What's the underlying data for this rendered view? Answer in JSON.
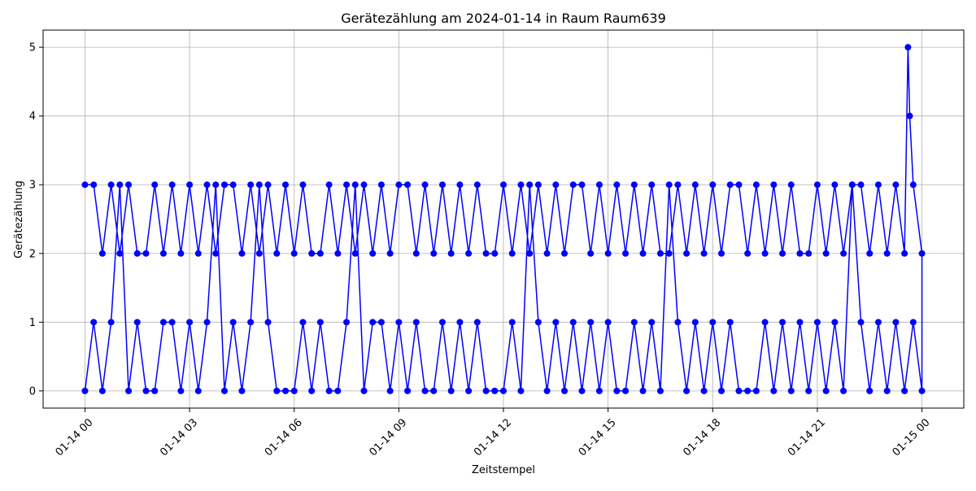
{
  "chart_data": {
    "type": "line",
    "title": "Gerätezählung am 2024-01-14 in Raum Raum639",
    "x_label": "Zeitstempel",
    "y_label": "Gerätezählung",
    "grid": true,
    "xlim": [
      -1.2,
      25.2
    ],
    "ylim": [
      -0.25,
      5.25
    ],
    "xticks": [
      {
        "value": 0,
        "label": "01-14 00"
      },
      {
        "value": 3,
        "label": "01-14 03"
      },
      {
        "value": 6,
        "label": "01-14 06"
      },
      {
        "value": 9,
        "label": "01-14 09"
      },
      {
        "value": 12,
        "label": "01-14 12"
      },
      {
        "value": 15,
        "label": "01-14 15"
      },
      {
        "value": 18,
        "label": "01-14 18"
      },
      {
        "value": 21,
        "label": "01-14 21"
      },
      {
        "value": 24,
        "label": "01-15 00"
      }
    ],
    "yticks": [
      0,
      1,
      2,
      3,
      4,
      5
    ],
    "series": [
      {
        "color": "#0000ff",
        "x": [
          0,
          0.25,
          0.5,
          0.75,
          1,
          1.25,
          1.5,
          1.75,
          2,
          2.25,
          2.5,
          2.75,
          3,
          3.25,
          3.5,
          3.75,
          4,
          4.25,
          4.5,
          4.75,
          5,
          5.25,
          5.5,
          5.75,
          6,
          6.25,
          6.5,
          6.75,
          7,
          7.25,
          7.5,
          7.75,
          8,
          8.25,
          8.5,
          8.75,
          9,
          9.25,
          9.5,
          9.75,
          10,
          10.25,
          10.5,
          10.75,
          11,
          11.25,
          11.5,
          11.75,
          12,
          12.25,
          12.5,
          12.75,
          13,
          13.25,
          13.5,
          13.75,
          14,
          14.25,
          14.5,
          14.75,
          15,
          15.25,
          15.5,
          15.75,
          16,
          16.25,
          16.5,
          16.75,
          17,
          17.25,
          17.5,
          17.75,
          18,
          18.25,
          18.5,
          18.75,
          19,
          19.25,
          19.5,
          19.75,
          20,
          20.25,
          20.5,
          20.75,
          21,
          21.25,
          21.5,
          21.75,
          22,
          22.25,
          22.5,
          22.75,
          23,
          23.25,
          23.5,
          23.75,
          24,
          24,
          23.75,
          23.65,
          23.6,
          23.5,
          23.25,
          23,
          22.75,
          22.5,
          22.25,
          22,
          21.75,
          21.5,
          21.25,
          21,
          20.75,
          20.5,
          20.25,
          20,
          19.75,
          19.5,
          19.25,
          19,
          18.75,
          18.5,
          18.25,
          18,
          17.75,
          17.5,
          17.25,
          17,
          16.75,
          16.5,
          16.25,
          16,
          15.75,
          15.5,
          15.25,
          15,
          14.75,
          14.5,
          14.25,
          14,
          13.75,
          13.5,
          13.25,
          13,
          12.75,
          12.5,
          12.25,
          12,
          11.75,
          11.5,
          11.25,
          11,
          10.75,
          10.5,
          10.25,
          10,
          9.75,
          9.5,
          9.25,
          9,
          8.75,
          8.5,
          8.25,
          8,
          7.75,
          7.5,
          7.25,
          7,
          6.75,
          6.5,
          6.25,
          6,
          5.75,
          5.5,
          5.25,
          5,
          4.75,
          4.5,
          4.25,
          4,
          3.75,
          3.5,
          3.25,
          3,
          2.75,
          2.5,
          2.25,
          2,
          1.75,
          1.5,
          1.25,
          1,
          0.75,
          0.5,
          0.25,
          0
        ],
        "values": [
          0,
          1,
          0,
          1,
          3,
          0,
          1,
          0,
          0,
          1,
          1,
          0,
          1,
          0,
          1,
          3,
          0,
          1,
          0,
          1,
          3,
          1,
          0,
          0,
          0,
          1,
          0,
          1,
          0,
          0,
          1,
          3,
          0,
          1,
          1,
          0,
          1,
          0,
          1,
          0,
          0,
          1,
          0,
          1,
          0,
          1,
          0,
          0,
          0,
          1,
          0,
          3,
          1,
          0,
          1,
          0,
          1,
          0,
          1,
          0,
          1,
          0,
          0,
          1,
          0,
          1,
          0,
          3,
          1,
          0,
          1,
          0,
          1,
          0,
          1,
          0,
          0,
          0,
          1,
          0,
          1,
          0,
          1,
          0,
          1,
          0,
          1,
          0,
          3,
          1,
          0,
          1,
          0,
          1,
          0,
          1,
          0,
          2,
          3,
          4,
          5,
          2,
          3,
          2,
          3,
          2,
          3,
          3,
          2,
          3,
          2,
          3,
          2,
          2,
          3,
          2,
          3,
          2,
          3,
          2,
          3,
          3,
          2,
          3,
          2,
          3,
          2,
          3,
          2,
          2,
          3,
          2,
          3,
          2,
          3,
          2,
          3,
          2,
          3,
          3,
          2,
          3,
          2,
          3,
          2,
          3,
          2,
          3,
          2,
          2,
          3,
          2,
          3,
          2,
          3,
          2,
          3,
          2,
          3,
          3,
          2,
          3,
          2,
          3,
          2,
          3,
          2,
          3,
          2,
          2,
          3,
          2,
          3,
          2,
          3,
          2,
          3,
          2,
          3,
          3,
          2,
          3,
          2,
          3,
          2,
          3,
          2,
          3,
          2,
          2,
          3,
          2,
          3,
          2,
          3,
          3
        ]
      }
    ]
  }
}
